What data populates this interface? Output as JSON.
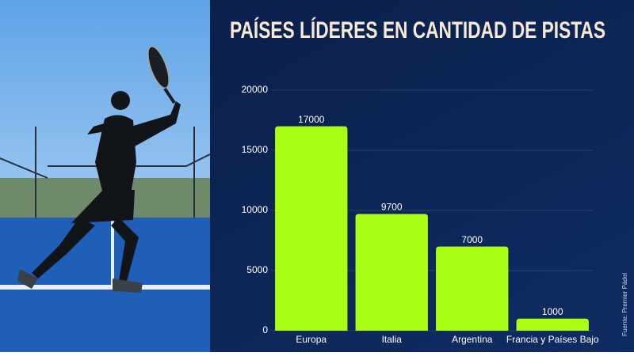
{
  "chart_data": {
    "type": "bar",
    "title": "PAÍSES LÍDERES EN CANTIDAD DE PISTAS",
    "categories": [
      "Europa",
      "Italia",
      "Argentina",
      "Francia y Países Bajo"
    ],
    "values": [
      17000,
      9700,
      7000,
      1000
    ],
    "color": "#aaff14",
    "ylim": [
      0,
      20000
    ],
    "yticks": [
      0,
      5000,
      10000,
      15000,
      20000
    ],
    "grid": true,
    "source": "Fuente: Premier Pádel"
  }
}
